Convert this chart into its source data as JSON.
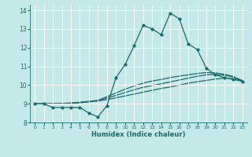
{
  "xlabel": "Humidex (Indice chaleur)",
  "background_color": "#c5e8e8",
  "grid_color": "#ffffff",
  "line_color": "#1a6b6b",
  "xlim": [
    -0.5,
    23.5
  ],
  "ylim": [
    8,
    14.3
  ],
  "yticks": [
    8,
    9,
    10,
    11,
    12,
    13,
    14
  ],
  "xticks": [
    0,
    1,
    2,
    3,
    4,
    5,
    6,
    7,
    8,
    9,
    10,
    11,
    12,
    13,
    14,
    15,
    16,
    17,
    18,
    19,
    20,
    21,
    22,
    23
  ],
  "main_line": {
    "x": [
      0,
      1,
      2,
      3,
      4,
      5,
      6,
      7,
      8,
      9,
      10,
      11,
      12,
      13,
      14,
      15,
      16,
      17,
      18,
      19,
      20,
      21,
      22,
      23
    ],
    "y": [
      9.0,
      9.0,
      8.8,
      8.8,
      8.8,
      8.8,
      8.5,
      8.3,
      8.9,
      10.4,
      11.1,
      12.1,
      13.2,
      13.0,
      12.7,
      13.85,
      13.55,
      12.2,
      11.9,
      10.9,
      10.55,
      10.4,
      10.3,
      10.2
    ]
  },
  "smooth_lines": [
    {
      "x": [
        0,
        1,
        2,
        3,
        4,
        5,
        6,
        7,
        8,
        9,
        10,
        11,
        12,
        13,
        14,
        15,
        16,
        17,
        18,
        19,
        20,
        21,
        22,
        23
      ],
      "y": [
        9.0,
        9.0,
        9.0,
        9.0,
        9.02,
        9.05,
        9.1,
        9.15,
        9.22,
        9.32,
        9.42,
        9.52,
        9.62,
        9.72,
        9.82,
        9.9,
        10.0,
        10.1,
        10.18,
        10.25,
        10.32,
        10.37,
        10.35,
        10.22
      ]
    },
    {
      "x": [
        0,
        1,
        2,
        3,
        4,
        5,
        6,
        7,
        8,
        9,
        10,
        11,
        12,
        13,
        14,
        15,
        16,
        17,
        18,
        19,
        20,
        21,
        22,
        23
      ],
      "y": [
        9.0,
        9.0,
        9.0,
        9.01,
        9.03,
        9.07,
        9.12,
        9.18,
        9.3,
        9.45,
        9.6,
        9.75,
        9.88,
        9.98,
        10.07,
        10.17,
        10.27,
        10.37,
        10.47,
        10.55,
        10.57,
        10.52,
        10.43,
        10.25
      ]
    },
    {
      "x": [
        0,
        1,
        2,
        3,
        4,
        5,
        6,
        7,
        8,
        9,
        10,
        11,
        12,
        13,
        14,
        15,
        16,
        17,
        18,
        19,
        20,
        21,
        22,
        23
      ],
      "y": [
        9.0,
        9.0,
        9.0,
        9.02,
        9.04,
        9.08,
        9.13,
        9.18,
        9.38,
        9.58,
        9.78,
        9.95,
        10.1,
        10.22,
        10.3,
        10.4,
        10.48,
        10.55,
        10.62,
        10.67,
        10.65,
        10.58,
        10.46,
        10.2
      ]
    }
  ]
}
